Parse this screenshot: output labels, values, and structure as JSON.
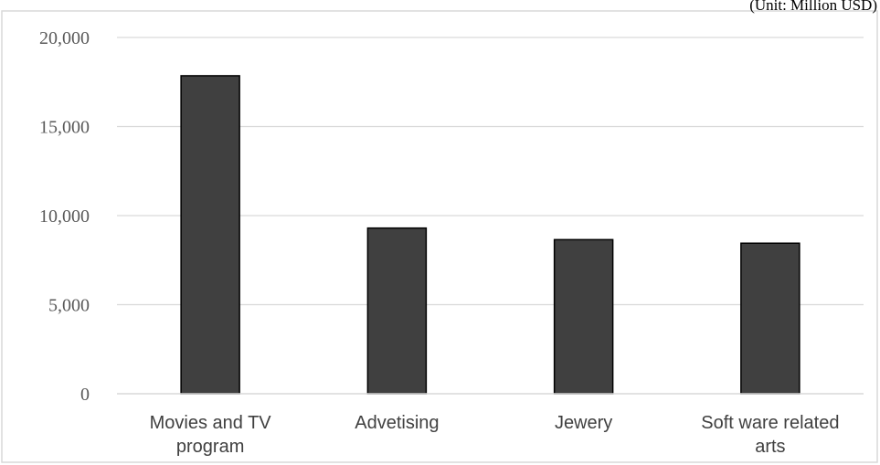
{
  "chart_data": {
    "type": "bar",
    "title": "",
    "unit_note": "(Unit: Million USD)",
    "xlabel": "",
    "ylabel": "",
    "categories": [
      [
        "Movies and TV",
        "program"
      ],
      [
        "Advetising"
      ],
      [
        "Jewery"
      ],
      [
        "Soft ware related",
        "arts"
      ]
    ],
    "values": [
      17850,
      9300,
      8650,
      8450
    ],
    "ylim": [
      0,
      20000
    ],
    "yticks": [
      0,
      5000,
      10000,
      15000,
      20000
    ],
    "ytick_labels": [
      "0",
      "5,000",
      "10,000",
      "15,000",
      "20,000"
    ],
    "grid": true,
    "legend": "none",
    "colors": {
      "bar_fill": "#404040",
      "bar_stroke": "#000000",
      "grid": "#d9d9d9",
      "axis": "#d9d9d9",
      "frame": "#d9d9d9"
    }
  }
}
